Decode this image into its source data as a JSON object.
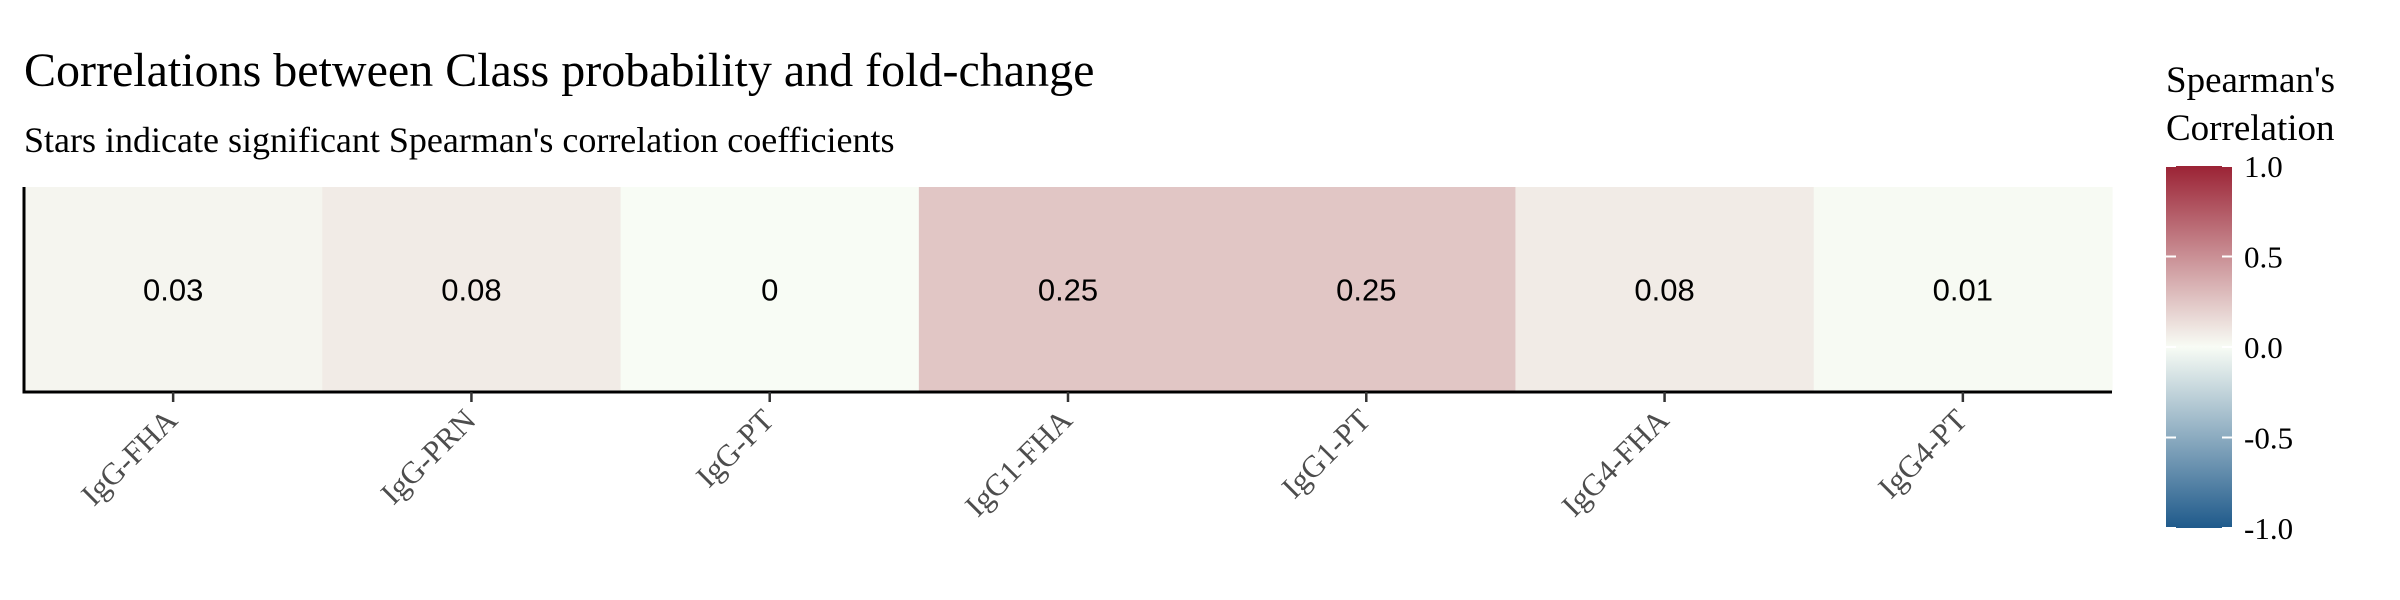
{
  "chart_data": {
    "type": "heatmap",
    "title": "Correlations between Class probability and fold-change",
    "subtitle": "Stars indicate significant Spearman's correlation coefficients",
    "categories": [
      "IgG-FHA",
      "IgG-PRN",
      "IgG-PT",
      "IgG1-FHA",
      "IgG1-PT",
      "IgG4-FHA",
      "IgG4-PT"
    ],
    "values": [
      0.03,
      0.08,
      0,
      0.25,
      0.25,
      0.08,
      0.01
    ],
    "labels": [
      "0.03",
      "0.08",
      "0",
      "0.25",
      "0.25",
      "0.08",
      "0.01"
    ],
    "legend": {
      "title_lines": [
        "Spearman's",
        "Correlation"
      ],
      "ticks": [
        1.0,
        0.5,
        0.0,
        -0.5,
        -1.0
      ],
      "tick_labels": [
        "1.0",
        "0.5",
        "0.0",
        "-0.5",
        "-1.0"
      ],
      "range": [
        -1.0,
        1.0
      ],
      "placement": "right"
    },
    "colors": {
      "low": "#1f5a8b",
      "mid": "#f8fcf5",
      "high": "#9b2335"
    },
    "grid": false
  }
}
